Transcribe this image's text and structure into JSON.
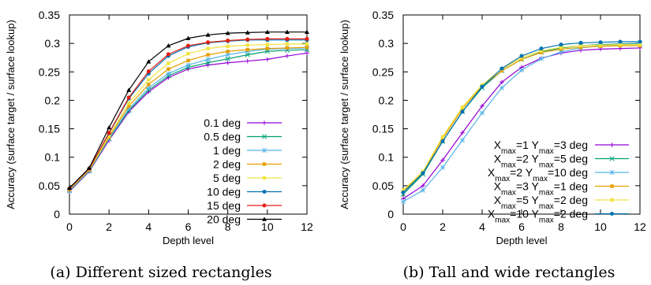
{
  "chart_data": [
    {
      "type": "line",
      "caption": "(a) Different sized rectangles",
      "xlabel": "Depth level",
      "ylabel": "Accuracy (surface target / surface lookup)",
      "xlim": [
        0,
        12
      ],
      "ylim": [
        0,
        0.35
      ],
      "xticks": [
        0,
        2,
        4,
        6,
        8,
        10,
        12
      ],
      "yticks": [
        0,
        0.05,
        0.1,
        0.15,
        0.2,
        0.25,
        0.3,
        0.35
      ],
      "ytick_labels": [
        "0",
        "0.05",
        "0.1",
        "0.15",
        "0.2",
        "0.25",
        "0.3",
        "0.35"
      ],
      "grid": false,
      "legend_position": "bottom-right",
      "x": [
        0,
        1,
        2,
        3,
        4,
        5,
        6,
        7,
        8,
        9,
        10,
        11,
        12
      ],
      "series": [
        {
          "name": "0.1 deg",
          "color": "#9400d3",
          "marker": "plus",
          "values": [
            0.04,
            0.075,
            0.13,
            0.18,
            0.215,
            0.24,
            0.255,
            0.262,
            0.266,
            0.269,
            0.272,
            0.278,
            0.283
          ]
        },
        {
          "name": "0.5 deg",
          "color": "#009e73",
          "marker": "x",
          "values": [
            0.041,
            0.076,
            0.132,
            0.182,
            0.218,
            0.243,
            0.258,
            0.266,
            0.273,
            0.28,
            0.286,
            0.288,
            0.289
          ]
        },
        {
          "name": "1 deg",
          "color": "#56b4e9",
          "marker": "star",
          "values": [
            0.042,
            0.077,
            0.133,
            0.185,
            0.222,
            0.247,
            0.262,
            0.272,
            0.28,
            0.286,
            0.29,
            0.291,
            0.292
          ]
        },
        {
          "name": "2 deg",
          "color": "#e69f00",
          "marker": "square",
          "values": [
            0.043,
            0.078,
            0.135,
            0.19,
            0.228,
            0.255,
            0.27,
            0.28,
            0.286,
            0.289,
            0.291,
            0.292,
            0.293
          ]
        },
        {
          "name": "5 deg",
          "color": "#f0e442",
          "marker": "square",
          "values": [
            0.044,
            0.079,
            0.138,
            0.195,
            0.236,
            0.265,
            0.282,
            0.291,
            0.295,
            0.297,
            0.298,
            0.299,
            0.299
          ]
        },
        {
          "name": "10 deg",
          "color": "#0072b2",
          "marker": "circle",
          "values": [
            0.045,
            0.08,
            0.142,
            0.203,
            0.247,
            0.278,
            0.294,
            0.301,
            0.304,
            0.306,
            0.306,
            0.306,
            0.306
          ]
        },
        {
          "name": "15 deg",
          "color": "#e51e10",
          "marker": "circle",
          "values": [
            0.045,
            0.08,
            0.143,
            0.205,
            0.251,
            0.281,
            0.296,
            0.302,
            0.305,
            0.307,
            0.308,
            0.308,
            0.308
          ]
        },
        {
          "name": "20 deg",
          "color": "#000000",
          "marker": "triangle",
          "values": [
            0.046,
            0.081,
            0.152,
            0.218,
            0.268,
            0.296,
            0.309,
            0.315,
            0.318,
            0.319,
            0.32,
            0.32,
            0.32
          ]
        }
      ]
    },
    {
      "type": "line",
      "caption": "(b) Tall and wide rectangles",
      "xlabel": "Depth level",
      "ylabel": "Accuracy (surface target / surface lookup)",
      "xlim": [
        0,
        12
      ],
      "ylim": [
        0,
        0.35
      ],
      "xticks": [
        0,
        2,
        4,
        6,
        8,
        10,
        12
      ],
      "yticks": [
        0,
        0.05,
        0.1,
        0.15,
        0.2,
        0.25,
        0.3,
        0.35
      ],
      "ytick_labels": [
        "0",
        "0.05",
        "0.1",
        "0.15",
        "0.2",
        "0.25",
        "0.3",
        "0.35"
      ],
      "grid": false,
      "legend_position": "bottom-right",
      "x": [
        0,
        1,
        2,
        3,
        4,
        5,
        6,
        7,
        8,
        9,
        10,
        11,
        12
      ],
      "series": [
        {
          "name": "Xmax=1 Ymax=3 deg",
          "label_parts": [
            "X",
            "max",
            "=1 Y",
            "max",
            "=3 deg"
          ],
          "color": "#9400d3",
          "marker": "plus",
          "values": [
            0.027,
            0.05,
            0.095,
            0.143,
            0.19,
            0.232,
            0.258,
            0.274,
            0.283,
            0.288,
            0.29,
            0.291,
            0.292
          ]
        },
        {
          "name": "Xmax=2 Ymax=5 deg",
          "label_parts": [
            "X",
            "max",
            "=2 Y",
            "max",
            "=5 deg"
          ],
          "color": "#009e73",
          "marker": "x",
          "values": [
            0.035,
            0.07,
            0.128,
            0.18,
            0.222,
            0.252,
            0.272,
            0.285,
            0.292,
            0.296,
            0.298,
            0.299,
            0.3
          ]
        },
        {
          "name": "Xmax=2 Ymax=10 deg",
          "label_parts": [
            "X",
            "max",
            "=2 Y",
            "max",
            "=10 deg"
          ],
          "color": "#56b4e9",
          "marker": "star",
          "values": [
            0.022,
            0.042,
            0.082,
            0.13,
            0.178,
            0.222,
            0.253,
            0.273,
            0.285,
            0.292,
            0.296,
            0.298,
            0.299
          ]
        },
        {
          "name": "Xmax=3 Ymax=1 deg",
          "label_parts": [
            "X",
            "max",
            "=3 Y",
            "max",
            "=1 deg"
          ],
          "color": "#e69f00",
          "marker": "square",
          "values": [
            0.04,
            0.073,
            0.133,
            0.185,
            0.225,
            0.252,
            0.272,
            0.284,
            0.29,
            0.293,
            0.295,
            0.296,
            0.296
          ]
        },
        {
          "name": "Xmax=5 Ymax=2 deg",
          "label_parts": [
            "X",
            "max",
            "=5 Y",
            "max",
            "=2 deg"
          ],
          "color": "#f0e442",
          "marker": "square",
          "values": [
            0.042,
            0.075,
            0.136,
            0.188,
            0.227,
            0.255,
            0.275,
            0.287,
            0.293,
            0.296,
            0.297,
            0.298,
            0.298
          ]
        },
        {
          "name": "Xmax=10 Ymax=2 deg",
          "label_parts": [
            "X",
            "max",
            "=10 Y",
            "max",
            "=2 deg"
          ],
          "color": "#0072b2",
          "marker": "circle",
          "values": [
            0.038,
            0.072,
            0.128,
            0.18,
            0.224,
            0.256,
            0.278,
            0.291,
            0.298,
            0.301,
            0.302,
            0.303,
            0.303
          ]
        }
      ]
    }
  ]
}
